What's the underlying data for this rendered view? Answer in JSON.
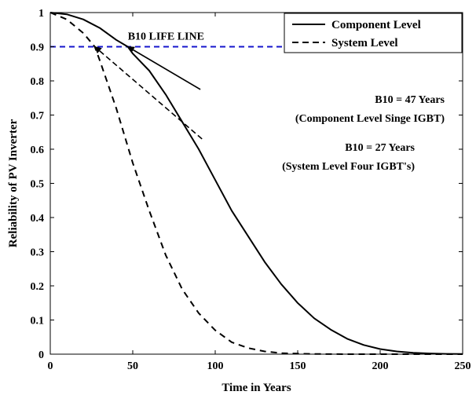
{
  "chart_data": {
    "type": "line",
    "title": "",
    "xlabel": "Time in Years",
    "ylabel": "Reliability of PV Inverter",
    "xlim": [
      0,
      250
    ],
    "ylim": [
      0,
      1
    ],
    "xticks": [
      0,
      50,
      100,
      150,
      200,
      250
    ],
    "yticks": [
      0,
      0.1,
      0.2,
      0.3,
      0.4,
      0.5,
      0.6,
      0.7,
      0.8,
      0.9,
      1
    ],
    "xtick_labels": [
      "0",
      "50",
      "100",
      "150",
      "200",
      "250"
    ],
    "ytick_labels": [
      "0",
      "0.1",
      "0.2",
      "0.3",
      "0.4",
      "0.5",
      "0.6",
      "0.7",
      "0.8",
      "0.9",
      "1"
    ],
    "grid": false,
    "legend_position": "top-right",
    "series": [
      {
        "name": "Component Level",
        "style": "solid",
        "color": "#000000",
        "x": [
          0,
          10,
          20,
          30,
          40,
          47,
          50,
          60,
          70,
          80,
          90,
          100,
          110,
          120,
          130,
          140,
          150,
          160,
          170,
          180,
          190,
          200,
          210,
          220,
          230,
          240,
          250
        ],
        "y": [
          1.0,
          0.995,
          0.98,
          0.955,
          0.92,
          0.9,
          0.88,
          0.83,
          0.76,
          0.68,
          0.6,
          0.51,
          0.42,
          0.345,
          0.27,
          0.205,
          0.15,
          0.105,
          0.072,
          0.045,
          0.027,
          0.015,
          0.008,
          0.004,
          0.002,
          0.001,
          0.0005
        ]
      },
      {
        "name": "System Level",
        "style": "dashed",
        "color": "#000000",
        "x": [
          0,
          10,
          20,
          27,
          30,
          40,
          50,
          60,
          70,
          80,
          90,
          100,
          110,
          120,
          130,
          140,
          150,
          160,
          170,
          180,
          190,
          200,
          250
        ],
        "y": [
          1.0,
          0.98,
          0.94,
          0.9,
          0.86,
          0.72,
          0.56,
          0.42,
          0.29,
          0.19,
          0.12,
          0.07,
          0.035,
          0.018,
          0.008,
          0.003,
          0.0015,
          0.0007,
          0.0003,
          0.0001,
          5e-05,
          0.0,
          0.0
        ]
      }
    ],
    "reference_line": {
      "label": "B10 LIFE LINE",
      "y": 0.9,
      "x_range": [
        0,
        142
      ],
      "style": "dashed",
      "color": "#1515cc"
    },
    "annotations": [
      {
        "id": "component",
        "lines": [
          "B10 = 47 Years",
          "(Component Level Singe IGBT)"
        ],
        "arrow_from": [
          91,
          0.775
        ],
        "arrow_to": [
          47,
          0.9
        ],
        "arrow_style": "solid"
      },
      {
        "id": "system",
        "lines": [
          "B10 = 27 Years",
          "(System Level Four IGBT's)"
        ],
        "arrow_from": [
          92,
          0.63
        ],
        "arrow_to": [
          27,
          0.9
        ],
        "arrow_style": "dashed"
      }
    ]
  }
}
